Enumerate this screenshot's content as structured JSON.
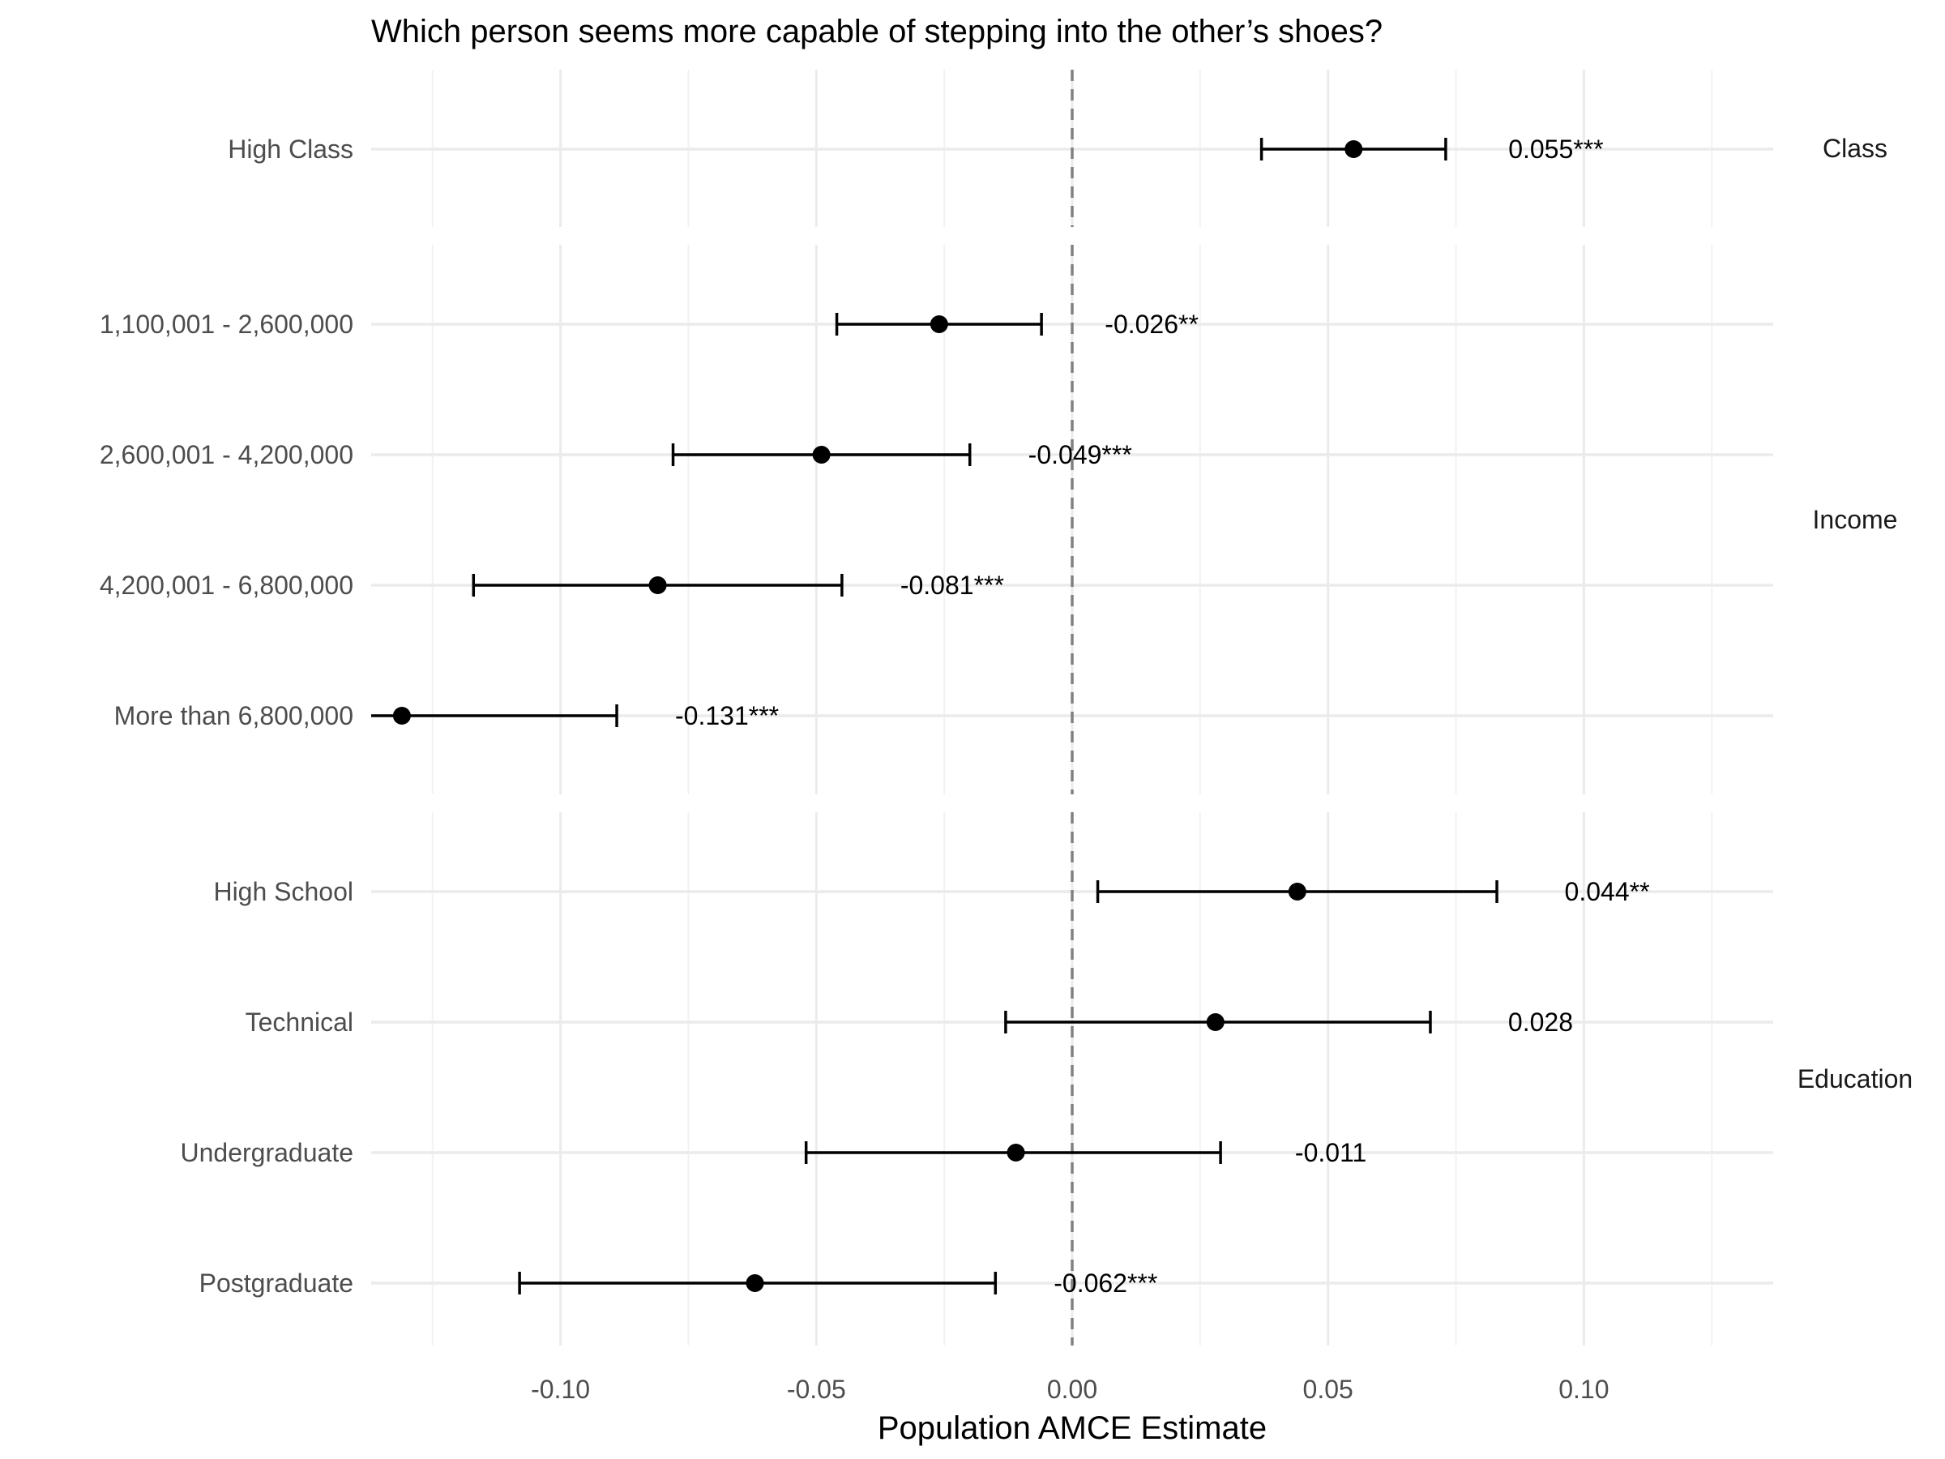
{
  "chart_data": {
    "type": "scatter",
    "subtype": "coefficient-plot-with-error-bars",
    "title": "Which person seems more capable of stepping into the other’s shoes?",
    "xlabel": "Population AMCE Estimate",
    "ylabel": "",
    "xlim": [
      -0.137,
      0.137
    ],
    "x_ticks": [
      -0.1,
      -0.05,
      0.0,
      0.05,
      0.1
    ],
    "x_tick_labels": [
      "-0.10",
      "-0.05",
      "0.00",
      "0.05",
      "0.10"
    ],
    "reference_line": 0,
    "grid": true,
    "panels": [
      {
        "name": "Class",
        "items": [
          {
            "label": "High Class",
            "estimate": 0.055,
            "lower": 0.037,
            "upper": 0.073,
            "annotation": "0.055***"
          }
        ]
      },
      {
        "name": "Income",
        "items": [
          {
            "label": "1,100,001 - 2,600,000",
            "estimate": -0.026,
            "lower": -0.046,
            "upper": -0.006,
            "annotation": "-0.026**"
          },
          {
            "label": "2,600,001 - 4,200,000",
            "estimate": -0.049,
            "lower": -0.078,
            "upper": -0.02,
            "annotation": "-0.049***"
          },
          {
            "label": "4,200,001 - 6,800,000",
            "estimate": -0.081,
            "lower": -0.117,
            "upper": -0.045,
            "annotation": "-0.081***"
          },
          {
            "label": "More than 6,800,000",
            "estimate": -0.131,
            "lower": -0.137,
            "upper": -0.089,
            "annotation": "-0.131***"
          }
        ]
      },
      {
        "name": "Education",
        "items": [
          {
            "label": "High School",
            "estimate": 0.044,
            "lower": 0.005,
            "upper": 0.083,
            "annotation": "0.044**"
          },
          {
            "label": "Technical",
            "estimate": 0.028,
            "lower": -0.013,
            "upper": 0.07,
            "annotation": "0.028"
          },
          {
            "label": "Undergraduate",
            "estimate": -0.011,
            "lower": -0.052,
            "upper": 0.029,
            "annotation": "-0.011"
          },
          {
            "label": "Postgraduate",
            "estimate": -0.062,
            "lower": -0.108,
            "upper": -0.015,
            "annotation": "-0.062***"
          }
        ]
      }
    ]
  }
}
